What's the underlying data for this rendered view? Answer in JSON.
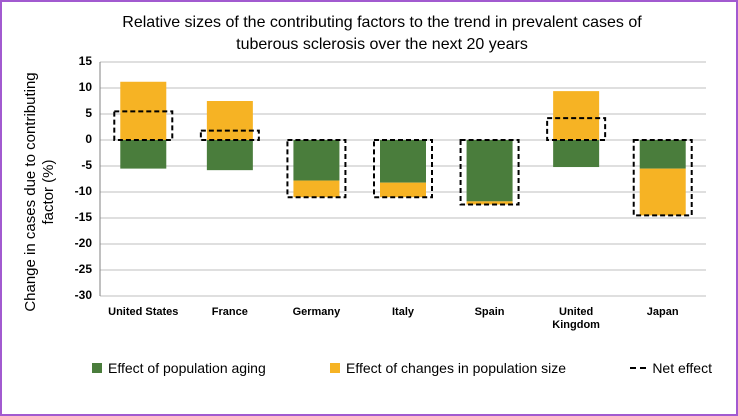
{
  "chart_data": {
    "type": "stacked_bar",
    "title": "Relative sizes of the contributing factors to the trend in prevalent cases of tuberous sclerosis over the next 20 years",
    "y_label": "Change in cases due to contributing factor (%)",
    "categories": [
      "United States",
      "France",
      "Germany",
      "Italy",
      "Spain",
      "United Kingdom",
      "Japan"
    ],
    "series": [
      {
        "name": "Effect of population aging",
        "color": "#4a7d3c",
        "values": [
          -5.5,
          -5.8,
          -7.8,
          -8.2,
          -11.8,
          -5.2,
          -5.5
        ]
      },
      {
        "name": "Effect of changes in population size",
        "color": "#f6b324",
        "values": [
          11.2,
          7.5,
          -3.2,
          -2.8,
          -0.6,
          9.4,
          -9.0
        ]
      },
      {
        "name": "Net effect",
        "color": "#000000",
        "dashed": true,
        "values": [
          5.5,
          1.8,
          -11.0,
          -11.0,
          -12.4,
          4.2,
          -14.5
        ]
      }
    ],
    "ylim": [
      -30,
      15
    ],
    "yticks": [
      -30,
      -25,
      -20,
      -15,
      -10,
      -5,
      0,
      5,
      10,
      15
    ],
    "grid": true,
    "legend": "bottom"
  }
}
